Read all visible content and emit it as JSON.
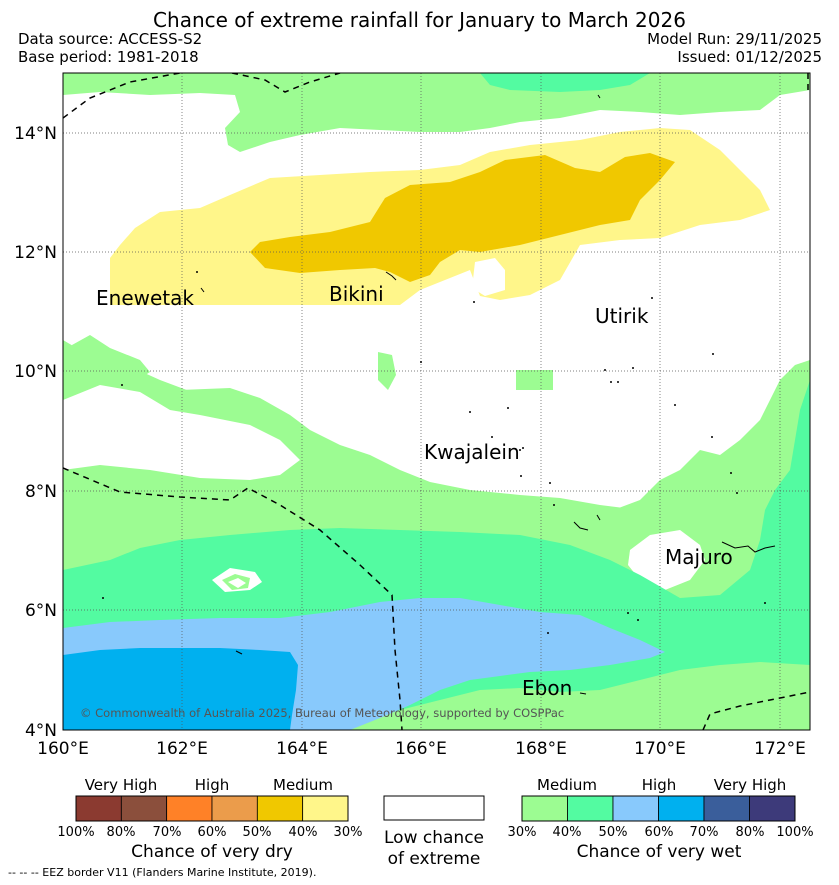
{
  "header": {
    "title": "Chance of extreme rainfall for January to March 2026",
    "data_source": "Data source: ACCESS-S2",
    "base_period": "Base period: 1981-2018",
    "model_run": "Model Run: 29/11/2025",
    "issued": "Issued: 01/12/2025"
  },
  "map": {
    "lat_labels": [
      "14°N",
      "12°N",
      "10°N",
      "8°N",
      "6°N",
      "4°N"
    ],
    "lon_labels": [
      "160°E",
      "162°E",
      "164°E",
      "166°E",
      "168°E",
      "170°E",
      "172°E"
    ],
    "places": [
      "Enewetak",
      "Bikini",
      "Utirik",
      "Kwajalein",
      "Majuro",
      "Ebon"
    ],
    "copyright": "© Commonwealth of Australia 2025, Bureau of Meteorology, supported by COSPPac"
  },
  "legend": {
    "dry": {
      "bands": [
        "Very High",
        "High",
        "Medium"
      ],
      "ticks": [
        "100%",
        "80%",
        "70%",
        "60%",
        "50%",
        "40%",
        "30%"
      ],
      "title": "Chance of very dry",
      "colors": [
        "#8b3a30",
        "#8b4f3c",
        "#ff8127",
        "#eb9c4b",
        "#f0c800",
        "#fff68a"
      ]
    },
    "low": {
      "line1": "Low chance",
      "line2": "of extreme"
    },
    "wet": {
      "bands": [
        "Medium",
        "High",
        "Very High"
      ],
      "ticks": [
        "30%",
        "40%",
        "50%",
        "60%",
        "70%",
        "80%",
        "100%"
      ],
      "title": "Chance of very wet",
      "colors": [
        "#9cfc92",
        "#53fba1",
        "#88c9fc",
        "#00b0ef",
        "#3a5e9b",
        "#3d3a7a"
      ]
    }
  },
  "footer": "-- -- -- EEZ border V11 (Flanders Marine Institute, 2019)."
}
